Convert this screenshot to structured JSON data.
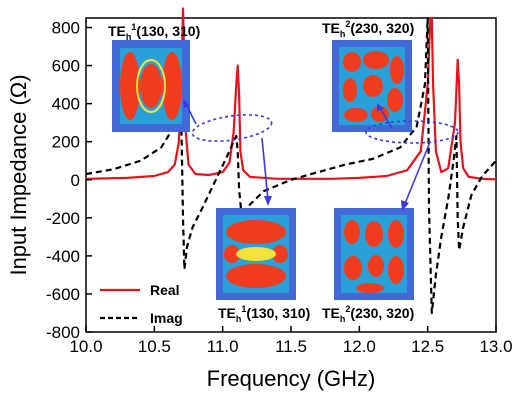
{
  "chart_data": {
    "type": "line",
    "title": "",
    "xlabel": "Frequency (GHz)",
    "ylabel": "Input Impedance (Ω)",
    "xlim": [
      10.0,
      13.0
    ],
    "ylim": [
      -800,
      850
    ],
    "x_ticks": [
      "10.0",
      "10.5",
      "11.0",
      "11.5",
      "12.0",
      "12.5",
      "13.0"
    ],
    "y_ticks": [
      "-800",
      "-600",
      "-400",
      "-200",
      "0",
      "200",
      "400",
      "600",
      "800"
    ],
    "grid": false,
    "legend_position": "bottom-left",
    "series": [
      {
        "name": "Real",
        "color": "#e8121d",
        "style": "solid",
        "x": [
          10.0,
          10.3,
          10.5,
          10.6,
          10.65,
          10.68,
          10.7,
          10.71,
          10.72,
          10.73,
          10.75,
          10.8,
          10.9,
          11.0,
          11.05,
          11.08,
          11.1,
          11.11,
          11.12,
          11.13,
          11.15,
          11.2,
          11.4,
          11.6,
          11.8,
          12.0,
          12.2,
          12.35,
          12.45,
          12.5,
          12.52,
          12.53,
          12.54,
          12.56,
          12.6,
          12.65,
          12.7,
          12.72,
          12.73,
          12.74,
          12.76,
          12.8,
          12.9,
          13.0
        ],
        "y": [
          5,
          10,
          20,
          40,
          80,
          200,
          600,
          900,
          600,
          250,
          80,
          30,
          25,
          40,
          90,
          250,
          500,
          600,
          450,
          150,
          50,
          15,
          5,
          5,
          5,
          10,
          20,
          50,
          150,
          500,
          850,
          850,
          500,
          150,
          40,
          60,
          300,
          630,
          500,
          200,
          60,
          15,
          5,
          2
        ]
      },
      {
        "name": "Imag",
        "color": "#000000",
        "style": "dashed",
        "x": [
          10.0,
          10.2,
          10.4,
          10.55,
          10.62,
          10.67,
          10.69,
          10.7,
          10.71,
          10.72,
          10.74,
          10.78,
          10.85,
          10.95,
          11.03,
          11.08,
          11.1,
          11.11,
          11.12,
          11.14,
          11.2,
          11.3,
          11.5,
          11.7,
          11.9,
          12.1,
          12.3,
          12.42,
          12.48,
          12.5,
          12.51,
          12.53,
          12.56,
          12.6,
          12.65,
          12.69,
          12.71,
          12.72,
          12.73,
          12.76,
          12.82,
          12.9,
          13.0
        ],
        "y": [
          30,
          55,
          100,
          170,
          250,
          400,
          520,
          200,
          -200,
          -470,
          -350,
          -250,
          -150,
          0,
          120,
          200,
          230,
          150,
          -50,
          -200,
          -130,
          -60,
          0,
          40,
          80,
          110,
          170,
          280,
          500,
          850,
          -150,
          -700,
          -500,
          -300,
          -100,
          100,
          230,
          -200,
          -370,
          -250,
          -80,
          20,
          100
        ]
      }
    ],
    "insets": [
      {
        "label": "TE",
        "sub": "h",
        "sup": "1",
        "params": "(130, 310)"
      },
      {
        "label": "TE",
        "sub": "h",
        "sup": "2",
        "params": "(230, 320)"
      },
      {
        "label": "TE",
        "sub": "h",
        "sup": "1",
        "params": "(130, 310)"
      },
      {
        "label": "TE",
        "sub": "h",
        "sup": "2",
        "params": "(230, 320)"
      }
    ]
  }
}
